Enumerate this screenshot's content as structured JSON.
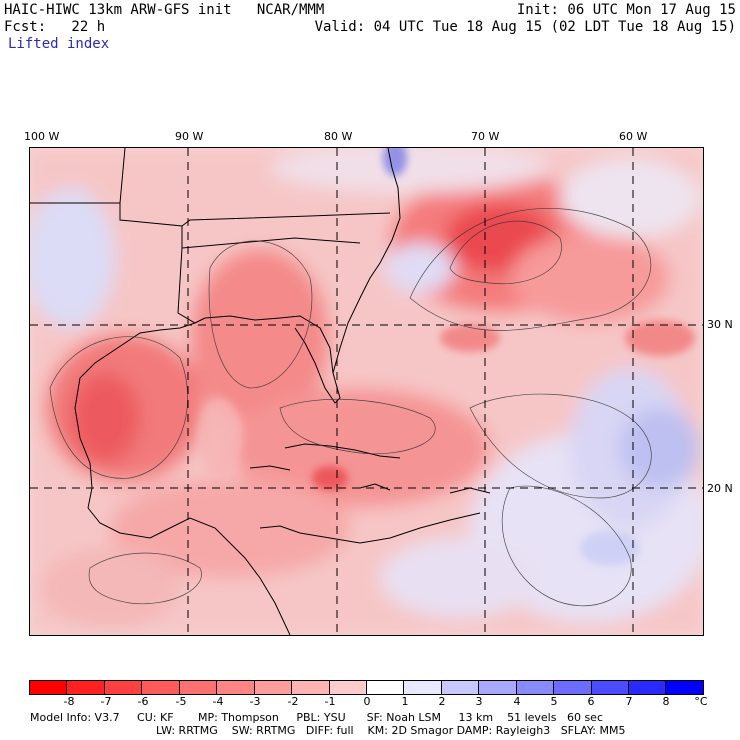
{
  "header": {
    "line1_left": "HAIC-HIWC 13km ARW-GFS init   NCAR/MMM",
    "line2_left": "Fcst:   22 h",
    "field": "Lifted index",
    "init": "Init: 06 UTC Mon 17 Aug 15",
    "valid": "Valid: 04 UTC Tue 18 Aug 15 (02 LDT Tue 18 Aug 15)"
  },
  "map": {
    "lon_labels": [
      "100 W",
      "90 W",
      "80 W",
      "70 W",
      "60 W"
    ],
    "lat_labels": [
      "30 N",
      "20 N"
    ],
    "colors": {
      "strong_unstable": "#e8484d",
      "moderate_unstable": "#f27a7a",
      "weak_unstable": "#f7b4b4",
      "near_neutral": "#fde6e6",
      "stable": "#c9cdf5",
      "very_stable": "#8f95ea",
      "land_border": "#000000"
    }
  },
  "colorbar": {
    "labels": [
      "-8",
      "-7",
      "-6",
      "-5",
      "-4",
      "-3",
      "-2",
      "-1",
      "0",
      "1",
      "2",
      "3",
      "4",
      "5",
      "6",
      "7",
      "8"
    ],
    "unit": "°C",
    "colors": [
      "#ff0000",
      "#ff2020",
      "#ff4040",
      "#ff5a5a",
      "#ff7070",
      "#ff8585",
      "#ff9c9c",
      "#ffb4b4",
      "#ffcccc",
      "#ffffff",
      "#e8e8ff",
      "#c8c8ff",
      "#a8a8ff",
      "#8a8aff",
      "#6c6cff",
      "#4c4cff",
      "#2a2aff",
      "#0000ff"
    ]
  },
  "footer": {
    "line1": "Model Info: V3.7     CU: KF       MP: Thompson     PBL: YSU      SF: Noah LSM     13 km    51 levels   60 sec",
    "line2": "LW: RRTMG    SW: RRTMG   DIFF: full    KM: 2D Smagor DAMP: Rayleigh3   SFLAY: MM5"
  }
}
